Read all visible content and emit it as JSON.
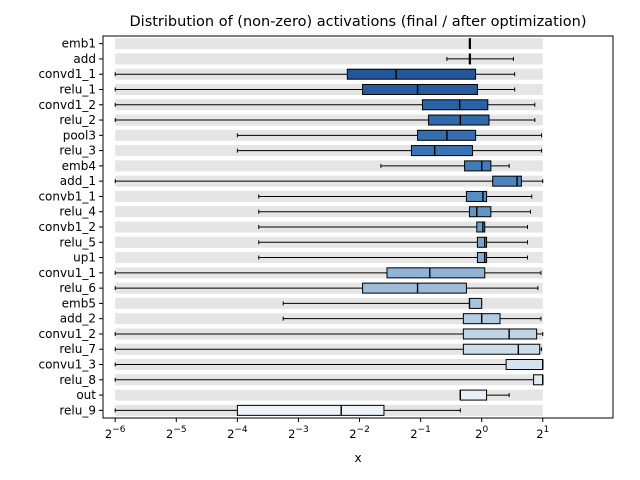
{
  "chart_data": {
    "type": "boxplot-horizontal",
    "title": "Distribution of (non-zero) activations (final / after optimization)",
    "xlabel": "x",
    "ylabel": "",
    "x_scale": "log2",
    "xlim": [
      -6.2,
      2.15
    ],
    "xticks": [
      {
        "exp": -6,
        "base": "2",
        "sup": "−6"
      },
      {
        "exp": -5,
        "base": "2",
        "sup": "−5"
      },
      {
        "exp": -4,
        "base": "2",
        "sup": "−4"
      },
      {
        "exp": -3,
        "base": "2",
        "sup": "−3"
      },
      {
        "exp": -2,
        "base": "2",
        "sup": "−2"
      },
      {
        "exp": -1,
        "base": "2",
        "sup": "−1"
      },
      {
        "exp": 0,
        "base": "2",
        "sup": "0"
      },
      {
        "exp": 1,
        "base": "2",
        "sup": "1"
      }
    ],
    "background_band": [
      -6,
      1
    ],
    "series": [
      {
        "name": "emb1",
        "whisker_low": -0.2,
        "q1": -0.2,
        "median": -0.2,
        "q3": -0.2,
        "whisker_high": -0.2,
        "color": "#1f4e8c"
      },
      {
        "name": "add",
        "whisker_low": -0.57,
        "q1": -0.2,
        "median": -0.2,
        "q3": -0.2,
        "whisker_high": 0.52,
        "color": "#215293"
      },
      {
        "name": "convd1_1",
        "whisker_low": -6.0,
        "q1": -2.2,
        "median": -1.4,
        "q3": -0.1,
        "whisker_high": 0.54,
        "color": "#23579a"
      },
      {
        "name": "relu_1",
        "whisker_low": -6.0,
        "q1": -1.95,
        "median": -1.05,
        "q3": -0.07,
        "whisker_high": 0.54,
        "color": "#265ca0"
      },
      {
        "name": "convd1_2",
        "whisker_low": -6.0,
        "q1": -0.97,
        "median": -0.36,
        "q3": 0.1,
        "whisker_high": 0.87,
        "color": "#2a62a6"
      },
      {
        "name": "relu_2",
        "whisker_low": -6.0,
        "q1": -0.87,
        "median": -0.35,
        "q3": 0.12,
        "whisker_high": 0.87,
        "color": "#2f68ab"
      },
      {
        "name": "pool3",
        "whisker_low": -4.0,
        "q1": -1.05,
        "median": -0.57,
        "q3": -0.1,
        "whisker_high": 0.98,
        "color": "#346eb0"
      },
      {
        "name": "relu_3",
        "whisker_low": -4.0,
        "q1": -1.15,
        "median": -0.77,
        "q3": -0.15,
        "whisker_high": 0.98,
        "color": "#3a74b4"
      },
      {
        "name": "emb4",
        "whisker_low": -1.65,
        "q1": -0.28,
        "median": 0.0,
        "q3": 0.15,
        "whisker_high": 0.45,
        "color": "#447cb9"
      },
      {
        "name": "add_1",
        "whisker_low": -6.0,
        "q1": 0.18,
        "median": 0.58,
        "q3": 0.65,
        "whisker_high": 1.0,
        "color": "#4e84be"
      },
      {
        "name": "convb1_1",
        "whisker_low": -3.65,
        "q1": -0.25,
        "median": 0.02,
        "q3": 0.08,
        "whisker_high": 0.82,
        "color": "#588cc2"
      },
      {
        "name": "relu_4",
        "whisker_low": -3.65,
        "q1": -0.2,
        "median": -0.08,
        "q3": 0.15,
        "whisker_high": 0.8,
        "color": "#6294c6"
      },
      {
        "name": "convb1_2",
        "whisker_low": -3.65,
        "q1": -0.08,
        "median": 0.02,
        "q3": 0.05,
        "whisker_high": 0.75,
        "color": "#6d9cca"
      },
      {
        "name": "relu_5",
        "whisker_low": -3.65,
        "q1": -0.07,
        "median": 0.05,
        "q3": 0.08,
        "whisker_high": 0.75,
        "color": "#78a4ce"
      },
      {
        "name": "up1",
        "whisker_low": -3.65,
        "q1": -0.07,
        "median": 0.05,
        "q3": 0.08,
        "whisker_high": 0.75,
        "color": "#83acd2"
      },
      {
        "name": "convu1_1",
        "whisker_low": -6.0,
        "q1": -1.55,
        "median": -0.85,
        "q3": 0.05,
        "whisker_high": 0.97,
        "color": "#8fb4d6"
      },
      {
        "name": "relu_6",
        "whisker_low": -6.0,
        "q1": -1.95,
        "median": -1.05,
        "q3": -0.25,
        "whisker_high": 0.92,
        "color": "#9bbcda"
      },
      {
        "name": "emb5",
        "whisker_low": -3.25,
        "q1": -0.2,
        "median": -0.2,
        "q3": 0.0,
        "whisker_high": 0.0,
        "color": "#a7c4de"
      },
      {
        "name": "add_2",
        "whisker_low": -3.25,
        "q1": -0.3,
        "median": 0.0,
        "q3": 0.3,
        "whisker_high": 0.97,
        "color": "#b3cce2"
      },
      {
        "name": "convu1_2",
        "whisker_low": -6.0,
        "q1": -0.3,
        "median": 0.45,
        "q3": 0.9,
        "whisker_high": 1.0,
        "color": "#bfd4e6"
      },
      {
        "name": "relu_7",
        "whisker_low": -6.0,
        "q1": -0.3,
        "median": 0.6,
        "q3": 0.95,
        "whisker_high": 0.98,
        "color": "#cbdcea"
      },
      {
        "name": "convu1_3",
        "whisker_low": -6.0,
        "q1": 0.4,
        "median": 1.0,
        "q3": 1.0,
        "whisker_high": 1.0,
        "color": "#d6e3ee"
      },
      {
        "name": "relu_8",
        "whisker_low": -6.0,
        "q1": 0.85,
        "median": 1.0,
        "q3": 1.0,
        "whisker_high": 1.0,
        "color": "#e0eaf3"
      },
      {
        "name": "out",
        "whisker_low": -0.35,
        "q1": -0.35,
        "median": -0.35,
        "q3": 0.08,
        "whisker_high": 0.45,
        "color": "#e8eff6"
      },
      {
        "name": "relu_9",
        "whisker_low": -6.0,
        "q1": -4.0,
        "median": -2.3,
        "q3": -1.6,
        "whisker_high": -0.35,
        "color": "#eef3f8"
      }
    ]
  }
}
